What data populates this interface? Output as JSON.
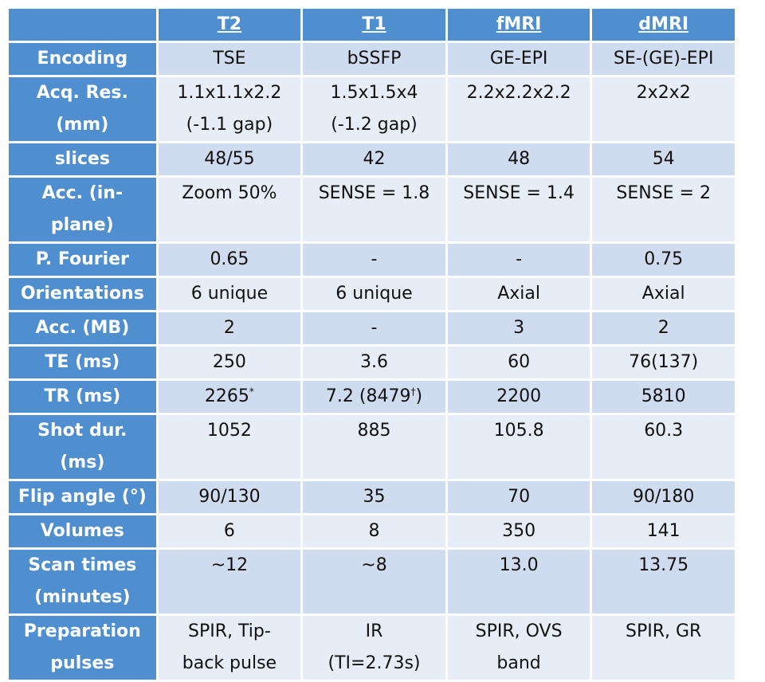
{
  "table": {
    "columns": [
      "T2",
      "T1",
      "fMRI",
      "dMRI"
    ],
    "rows": [
      {
        "label": "Encoding",
        "cells": [
          "TSE",
          "bSSFP",
          "GE-EPI",
          "SE-(GE)-EPI"
        ]
      },
      {
        "label": "Acq. Res.\n(mm)",
        "cells": [
          "1.1x1.1x2.2\n(-1.1 gap)",
          "1.5x1.5x4\n(-1.2 gap)",
          "2.2x2.2x2.2",
          "2x2x2"
        ]
      },
      {
        "label": "slices",
        "cells": [
          "48/55",
          "42",
          "48",
          "54"
        ]
      },
      {
        "label": "Acc. (in-\nplane)",
        "cells": [
          "Zoom 50%",
          "SENSE = 1.8",
          "SENSE = 1.4",
          "SENSE = 2"
        ]
      },
      {
        "label": "P. Fourier",
        "cells": [
          "0.65",
          "-",
          "-",
          "0.75"
        ]
      },
      {
        "label": "Orientations",
        "cells": [
          "6 unique",
          "6 unique",
          "Axial",
          "Axial"
        ]
      },
      {
        "label": "Acc. (MB)",
        "cells": [
          "2",
          "-",
          "3",
          "2"
        ]
      },
      {
        "label": "TE (ms)",
        "cells": [
          "250",
          "3.6",
          "60",
          "76(137)"
        ]
      },
      {
        "label": "TR (ms)",
        "cells": [
          "2265",
          "7.2 (8479",
          "2200",
          "5810"
        ]
      },
      {
        "label": "Shot dur.\n(ms)",
        "cells": [
          "1052",
          "885",
          "105.8",
          "60.3"
        ]
      },
      {
        "label": "Flip angle (°)",
        "cells": [
          "90/130",
          "35",
          "70",
          "90/180"
        ]
      },
      {
        "label": "Volumes",
        "cells": [
          "6",
          "8",
          "350",
          "141"
        ]
      },
      {
        "label": "Scan times\n(minutes)",
        "cells": [
          "~12",
          "~8",
          "13.0",
          "13.75"
        ]
      },
      {
        "label": "Preparation\npulses",
        "cells": [
          "SPIR, Tip-\nback pulse",
          "IR\n(TI=2.73s)",
          "SPIR, OVS\nband",
          "SPIR, GR"
        ]
      }
    ],
    "tr_marks": {
      "t2_mark": "*",
      "t1_mark": "†",
      "t1_close": ")"
    }
  },
  "colors": {
    "header": "#4f8fd0",
    "band_dark": "#cfdbee",
    "band_light": "#e7edf7"
  }
}
